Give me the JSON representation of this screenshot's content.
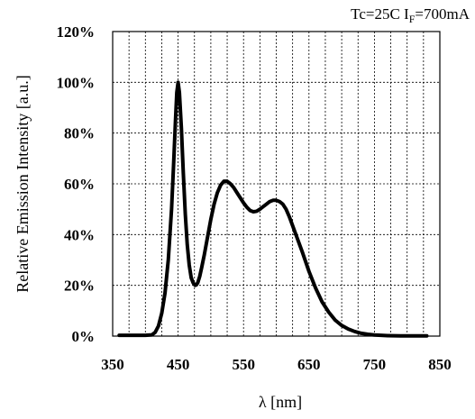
{
  "chart_data": {
    "type": "line",
    "title": "",
    "annotation": {
      "prefix": "Tc=25C I",
      "subscript": "F",
      "suffix": "=700mA"
    },
    "xlabel": "λ [nm]",
    "ylabel": "Relative Emission Intensity [a.u.]",
    "xlim": [
      350,
      850
    ],
    "ylim": [
      0,
      120
    ],
    "x_ticks": [
      350,
      450,
      550,
      650,
      750,
      850
    ],
    "x_tick_labels": [
      "350",
      "450",
      "550",
      "650",
      "750",
      "850"
    ],
    "y_ticks": [
      0,
      20,
      40,
      60,
      80,
      100,
      120
    ],
    "y_tick_labels": [
      "0%",
      "20%",
      "40%",
      "60%",
      "80%",
      "100%",
      "120%"
    ],
    "x_minor_step": 25,
    "grid": true,
    "legend": "none",
    "line_color": "#000000",
    "series": [
      {
        "x": [
          360,
          380,
          400,
          410,
          415,
          420,
          425,
          430,
          435,
          440,
          443,
          446,
          448,
          450,
          452,
          455,
          458,
          461,
          464,
          467,
          470,
          473,
          476,
          478,
          480,
          483,
          486,
          490,
          495,
          500,
          505,
          510,
          515,
          520,
          525,
          530,
          535,
          540,
          545,
          550,
          555,
          560,
          565,
          570,
          575,
          580,
          585,
          590,
          595,
          600,
          605,
          610,
          615,
          620,
          625,
          630,
          640,
          650,
          660,
          670,
          680,
          690,
          700,
          710,
          720,
          730,
          740,
          750,
          760,
          770,
          780,
          790,
          800,
          810,
          820,
          830
        ],
        "y": [
          0.3,
          0.3,
          0.3,
          0.5,
          1.5,
          4,
          9,
          17,
          30,
          50,
          67,
          85,
          96,
          100,
          96,
          82,
          64,
          48,
          36,
          28,
          23,
          21,
          20,
          20.2,
          21,
          23.5,
          27,
          32,
          39,
          46,
          52,
          56.5,
          59.5,
          61,
          61,
          60,
          58.5,
          56.5,
          54.5,
          52.5,
          50.8,
          49.5,
          49,
          49.2,
          50,
          51,
          52,
          53,
          53.5,
          53.5,
          53,
          52,
          50,
          47,
          43.5,
          40,
          33,
          25.5,
          19,
          13.5,
          9.5,
          6.3,
          4.2,
          2.8,
          1.8,
          1.1,
          0.7,
          0.45,
          0.3,
          0.2,
          0.15,
          0.1,
          0.1,
          0.1,
          0.1,
          0.1
        ]
      }
    ]
  }
}
